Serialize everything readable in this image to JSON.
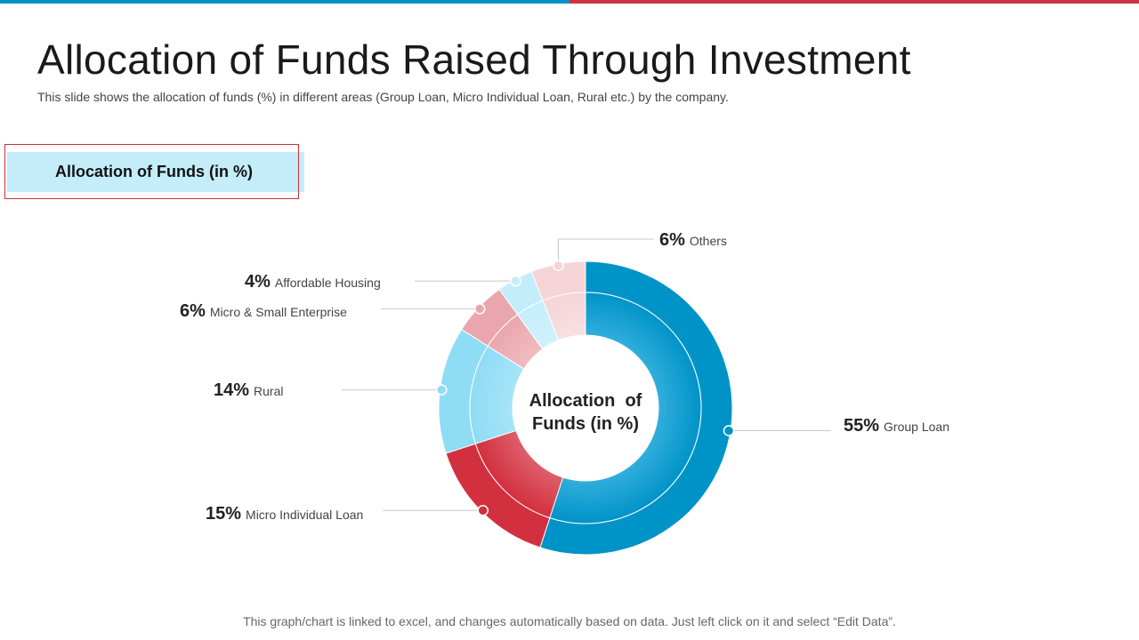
{
  "colors": {
    "accent_blue": "#0093c8",
    "accent_red": "#d03140"
  },
  "header": {
    "title": "Allocation of Funds Raised Through Investment",
    "subtitle": "This slide shows the allocation of funds (%) in different areas (Group Loan, Micro Individual  Loan, Rural etc.) by the company."
  },
  "section": {
    "label": "Allocation of Funds (in %)"
  },
  "chart_data": {
    "type": "donut",
    "title": "Allocation of Funds (in %)",
    "center_label_lines": [
      "Allocation  of",
      "Funds (in %)"
    ],
    "unit": "%",
    "slices": [
      {
        "name": "Group Loan",
        "value": 55,
        "label_pct": "55%",
        "color": "#0093c8",
        "inner_color": "#35b0dd"
      },
      {
        "name": "Micro Individual  Loan",
        "value": 15,
        "label_pct": "15%",
        "color": "#d2303f",
        "inner_color": "#e0626e"
      },
      {
        "name": "Rural",
        "value": 14,
        "label_pct": "14%",
        "color": "#8fdcf5",
        "inner_color": "#a8e5f8"
      },
      {
        "name": "Micro & Small Enterprise",
        "value": 6,
        "label_pct": "6%",
        "color": "#eaa6ad",
        "inner_color": "#f0bec3"
      },
      {
        "name": "Affordable Housing",
        "value": 4,
        "label_pct": "4%",
        "color": "#c4edfb",
        "inner_color": "#d3f2fc"
      },
      {
        "name": "Others",
        "value": 6,
        "label_pct": "6%",
        "color": "#f5d4d7",
        "inner_color": "#f8e1e3"
      }
    ]
  },
  "footer": {
    "note": "This graph/chart is linked to excel,  and changes automatically based on data. Just left click on it and select “Edit Data”."
  }
}
